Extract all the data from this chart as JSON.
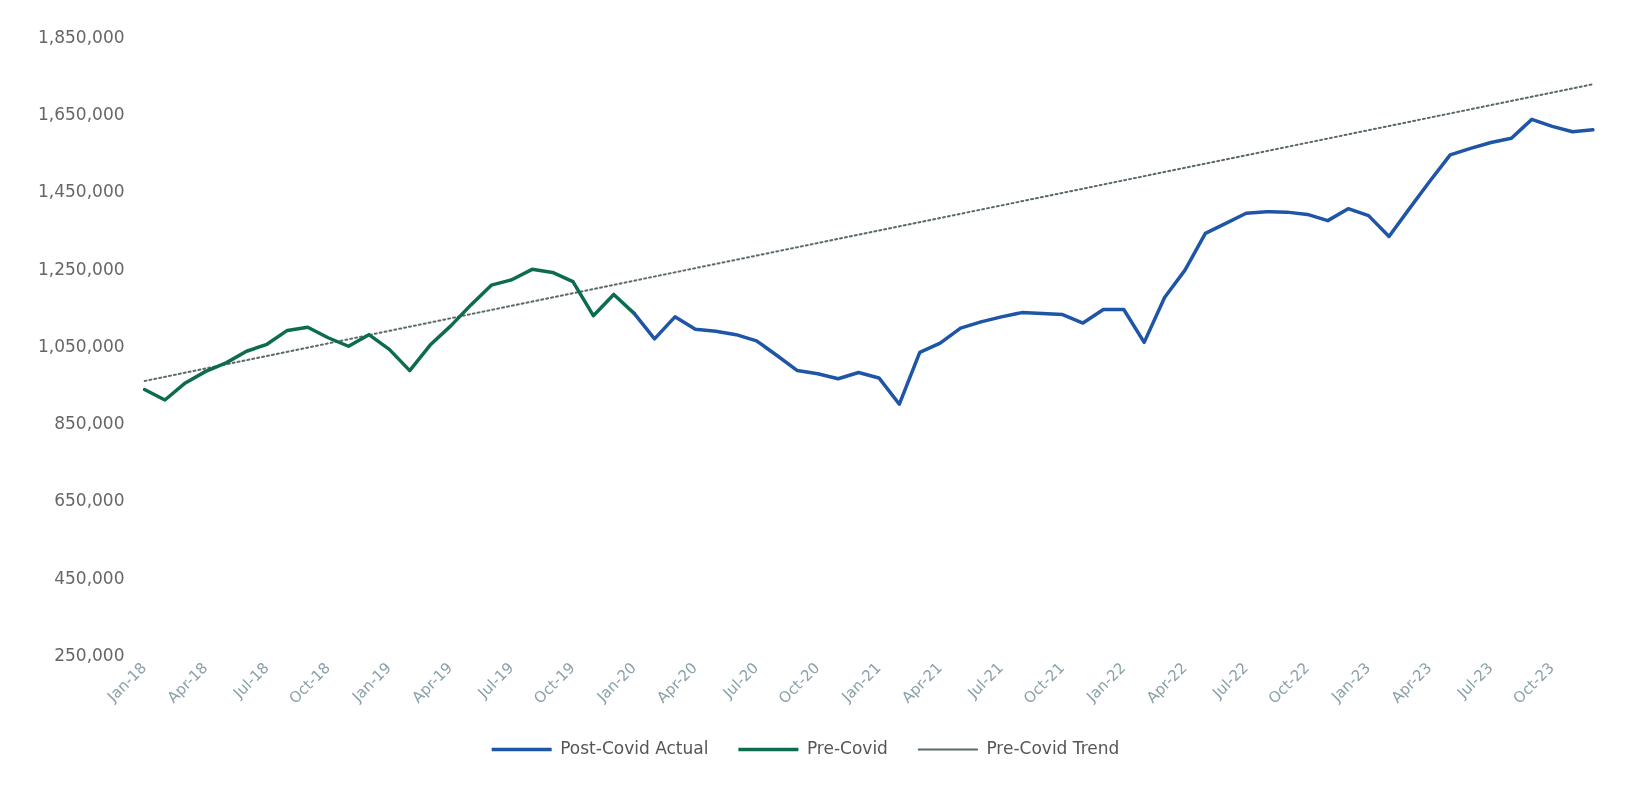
{
  "chart_data": {
    "type": "line",
    "categories": [
      "Jan-18",
      null,
      null,
      "Apr-18",
      null,
      null,
      "Jul-18",
      null,
      null,
      "Oct-18",
      null,
      null,
      "Jan-19",
      null,
      null,
      "Apr-19",
      null,
      null,
      "Jul-19",
      null,
      null,
      "Oct-19",
      null,
      null,
      "Jan-20",
      null,
      null,
      "Apr-20",
      null,
      null,
      "Jul-20",
      null,
      null,
      "Oct-20",
      null,
      null,
      "Jan-21",
      null,
      null,
      "Apr-21",
      null,
      null,
      "Jul-21",
      null,
      null,
      "Oct-21",
      null,
      null,
      "Jan-22",
      null,
      null,
      "Apr-22",
      null,
      null,
      "Jul-22",
      null,
      null,
      "Oct-22",
      null,
      null,
      "Jan-23",
      null,
      null,
      "Apr-23",
      null,
      null,
      "Jul-23",
      null,
      null,
      "Oct-23",
      null,
      null
    ],
    "series": [
      {
        "name": "Post-Covid Actual",
        "color": "#1f55a6",
        "line_style": "solid",
        "values": [
          null,
          null,
          null,
          null,
          null,
          null,
          null,
          null,
          null,
          null,
          null,
          null,
          null,
          null,
          null,
          null,
          null,
          null,
          null,
          null,
          null,
          null,
          null,
          null,
          1138000,
          1072000,
          1129000,
          1097000,
          1092000,
          1083000,
          1067000,
          1029000,
          990000,
          982000,
          969000,
          985000,
          971000,
          903000,
          1037000,
          1061000,
          1100000,
          1116000,
          1129000,
          1140000,
          1138000,
          1135000,
          1113000,
          1148000,
          1148000,
          1063000,
          1179000,
          1250000,
          1345000,
          1371000,
          1397000,
          1401000,
          1400000,
          1394000,
          1378000,
          1409000,
          1391000,
          1337000,
          1409000,
          1480000,
          1548000,
          1565000,
          1580000,
          1591000,
          1640000,
          1622000,
          1608000,
          1613000
        ]
      },
      {
        "name": "Pre-Covid",
        "color": "#0d6b50",
        "line_style": "solid",
        "values": [
          941000,
          914000,
          958000,
          988000,
          1010000,
          1040000,
          1058000,
          1094000,
          1102000,
          1075000,
          1053000,
          1083000,
          1045000,
          990000,
          1056000,
          1105000,
          1160000,
          1211000,
          1225000,
          1252000,
          1244000,
          1220000,
          1132000,
          1187000,
          1138000,
          null,
          null,
          null,
          null,
          null,
          null,
          null,
          null,
          null,
          null,
          null,
          null,
          null,
          null,
          null,
          null,
          null,
          null,
          null,
          null,
          null,
          null,
          null,
          null,
          null,
          null,
          null,
          null,
          null,
          null,
          null,
          null,
          null,
          null,
          null,
          null,
          null,
          null,
          null,
          null,
          null,
          null,
          null,
          null,
          null,
          null,
          null
        ]
      },
      {
        "name": "Pre-Covid Trend",
        "color": "#5b6b62",
        "line_style": "dotted",
        "values": [
          963000,
          null,
          null,
          null,
          null,
          null,
          null,
          null,
          null,
          null,
          null,
          null,
          null,
          null,
          null,
          null,
          null,
          null,
          null,
          null,
          null,
          null,
          null,
          null,
          null,
          null,
          null,
          null,
          null,
          null,
          null,
          null,
          null,
          null,
          null,
          null,
          null,
          null,
          null,
          null,
          null,
          null,
          null,
          null,
          null,
          null,
          null,
          null,
          null,
          null,
          null,
          null,
          null,
          null,
          null,
          null,
          null,
          null,
          null,
          null,
          null,
          null,
          null,
          null,
          null,
          null,
          null,
          null,
          null,
          null,
          null,
          1731000
        ]
      }
    ],
    "ylim": [
      250000,
      1850000
    ],
    "yticks": [
      {
        "value": 250000,
        "label": "250,000"
      },
      {
        "value": 450000,
        "label": "450,000"
      },
      {
        "value": 650000,
        "label": "650,000"
      },
      {
        "value": 850000,
        "label": "850,000"
      },
      {
        "value": 1050000,
        "label": "1,050,000"
      },
      {
        "value": 1250000,
        "label": "1,250,000"
      },
      {
        "value": 1450000,
        "label": "1,450,000"
      },
      {
        "value": 1650000,
        "label": "1,650,000"
      },
      {
        "value": 1850000,
        "label": "1,850,000"
      }
    ],
    "grid": false,
    "legend": "bottom",
    "marker": "none"
  }
}
